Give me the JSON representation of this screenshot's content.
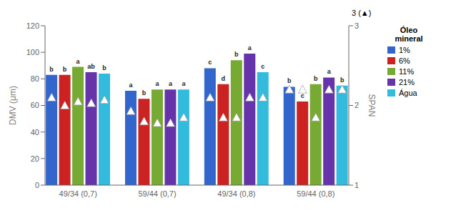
{
  "chart_data": {
    "type": "bar",
    "categories": [
      "49/34 (0,7)",
      "59/44 (0,7)",
      "49/34 (0,8)",
      "59/44 (0,8)"
    ],
    "series": [
      {
        "name": "1%",
        "color": "#3366CC",
        "values": [
          83,
          71,
          88,
          74
        ],
        "letters": [
          "b",
          "a",
          "c",
          "b"
        ],
        "span": [
          2.1,
          1.93,
          2.1,
          2.2
        ]
      },
      {
        "name": "6%",
        "color": "#CC2222",
        "values": [
          83,
          65,
          76,
          63
        ],
        "letters": [
          "b",
          "b",
          "d",
          "c"
        ],
        "span": [
          2.0,
          1.8,
          1.85,
          2.2
        ]
      },
      {
        "name": "11%",
        "color": "#77AA33",
        "values": [
          89,
          72,
          94,
          76
        ],
        "letters": [
          "a",
          "a",
          "b",
          "b"
        ],
        "span": [
          2.05,
          1.78,
          1.85,
          1.85
        ]
      },
      {
        "name": "21%",
        "color": "#6633AA",
        "values": [
          85,
          72,
          99,
          81
        ],
        "letters": [
          "ab",
          "a",
          "a",
          "a"
        ],
        "span": [
          2.03,
          1.78,
          2.1,
          2.2
        ]
      },
      {
        "name": "Água",
        "color": "#33BBDD",
        "values": [
          84,
          72,
          85,
          75
        ],
        "letters": [
          "b",
          "a",
          "c",
          "b"
        ],
        "span": [
          2.07,
          1.85,
          2.1,
          2.2
        ]
      }
    ],
    "ylabel": "DMV (μm)",
    "y2label": "SPAN",
    "ylim": [
      0,
      120
    ],
    "yticks": [
      0,
      20,
      40,
      60,
      80,
      100,
      120
    ],
    "y2lim": [
      1,
      3
    ],
    "y2ticks": [
      1,
      2,
      3
    ],
    "legend_title": "Óleo\nmineral",
    "annotations": [
      "3 (▲)"
    ],
    "grid": false,
    "legend": "right"
  }
}
